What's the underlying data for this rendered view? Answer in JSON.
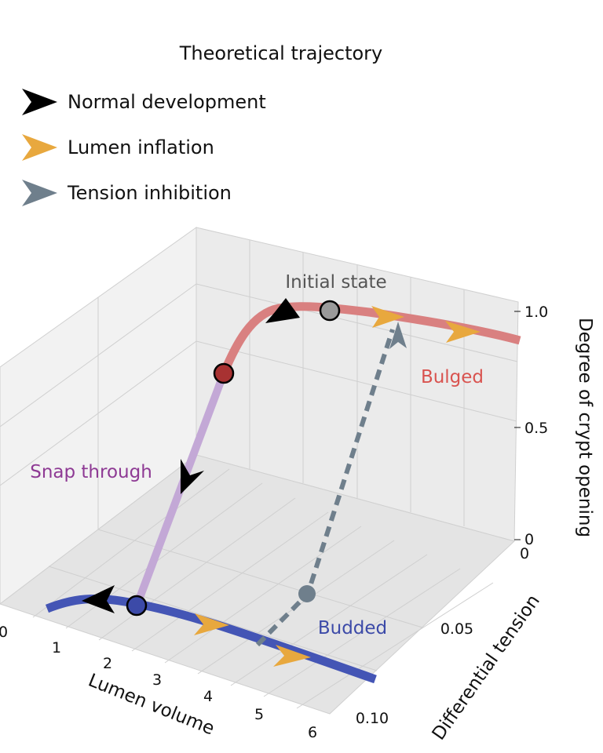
{
  "chart_data": {
    "type": "line",
    "projection": "3d",
    "legend": {
      "title": "Theoretical trajectory",
      "placement": "top-left",
      "items": [
        {
          "label": "Normal development",
          "color": "#000000",
          "marker": "arrowhead"
        },
        {
          "label": "Lumen inflation",
          "color": "#e8a83e",
          "marker": "arrowhead"
        },
        {
          "label": "Tension inhibition",
          "color": "#6f7f8c",
          "marker": "arrowhead"
        }
      ]
    },
    "axes": {
      "x": {
        "label": "Lumen volume",
        "lim": [
          0,
          6
        ],
        "ticks": [
          "0",
          "1",
          "2",
          "3",
          "4",
          "5",
          "6"
        ]
      },
      "y": {
        "label": "Differential tension",
        "lim": [
          0,
          0.1
        ],
        "ticks": [
          "0",
          "0.05",
          "0.10"
        ]
      },
      "z": {
        "label": "Degree of crypt opening",
        "lim": [
          0,
          1.0
        ],
        "ticks": [
          "0",
          "0.5",
          "1.0"
        ]
      },
      "grid": true
    },
    "annotations": [
      {
        "text": "Initial state",
        "color": "#555555"
      },
      {
        "text": "Bulged",
        "color": "#d9534f"
      },
      {
        "text": "Snap through",
        "color": "#8e3a94"
      },
      {
        "text": "Budded",
        "color": "#3c4aa8"
      }
    ],
    "series": [
      {
        "role": "bulged-branch",
        "color": "#d98080",
        "x": [
          1.0,
          1.3,
          1.7,
          2.2,
          2.7,
          3.3,
          4.0,
          4.8,
          5.5,
          6.0
        ],
        "y": [
          0,
          0,
          0,
          0,
          0,
          0,
          0,
          0,
          0,
          0
        ],
        "z": [
          0.7,
          0.85,
          0.94,
          0.98,
          1.0,
          1.0,
          0.98,
          0.96,
          0.94,
          0.93
        ]
      },
      {
        "role": "snap-through",
        "color": "#c3a8d6",
        "x": [
          1.0,
          1.0
        ],
        "y": [
          0,
          0
        ],
        "z": [
          0.7,
          0.0
        ]
      },
      {
        "role": "budded-branch",
        "color": "#4455b5",
        "x": [
          0.5,
          1.0,
          2.0,
          3.0,
          4.0,
          5.0,
          6.0
        ],
        "y": [
          0.1,
          0.1,
          0.1,
          0.1,
          0.1,
          0.1,
          0.1
        ],
        "z": [
          0,
          0,
          0,
          0,
          0,
          0,
          0
        ]
      },
      {
        "role": "tension-inhibition-path",
        "color": "#6f7f8c",
        "dashed": true,
        "x": [
          3.2,
          3.2,
          3.2
        ],
        "y": [
          0.1,
          0.055,
          0.0
        ],
        "z": [
          0,
          0,
          0.97
        ]
      }
    ],
    "points": [
      {
        "role": "initial-state",
        "x": 2.2,
        "y": 0,
        "z": 1.0,
        "color": "#9a9a9a"
      },
      {
        "role": "bulged-endpoint",
        "x": 1.0,
        "y": 0,
        "z": 0.7,
        "color": "#a83232"
      },
      {
        "role": "budded-endpoint",
        "x": 1.0,
        "y": 0.1,
        "z": 0,
        "color": "#3c4aa8"
      },
      {
        "role": "tension-start",
        "x": 3.2,
        "y": 0.055,
        "z": 0,
        "color": "#6f7f8c"
      }
    ]
  }
}
